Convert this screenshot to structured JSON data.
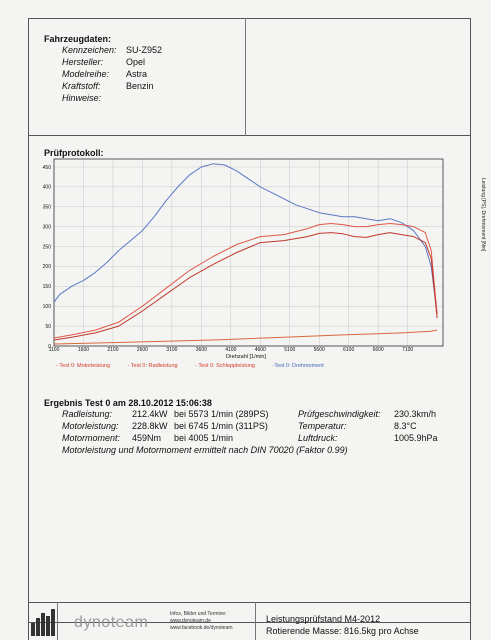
{
  "vehicle": {
    "heading": "Fahrzeugdaten:",
    "rows": [
      {
        "label": "Kennzeichen:",
        "value": "SU-Z952"
      },
      {
        "label": "Hersteller:",
        "value": "Opel"
      },
      {
        "label": "Modelreihe:",
        "value": "Astra"
      },
      {
        "label": "Kraftstoff:",
        "value": "Benzin"
      },
      {
        "label": "Hinweise:",
        "value": ""
      }
    ]
  },
  "protocol": {
    "heading": "Prüfprotokoll:",
    "right_axis_label": "Leistung [PS], Drehmoment [Nm]",
    "legend": [
      {
        "label": "- Test 0: Motorleistung",
        "color": "#d33a2c"
      },
      {
        "label": "- Test 0: Radleistung",
        "color": "#d33a2c"
      },
      {
        "label": "- Test 0: Schleppleistung",
        "color": "#d33a2c"
      },
      {
        "label": "-Test 0: Drehmoment",
        "color": "#4466bb"
      }
    ]
  },
  "chart_data": {
    "type": "line",
    "xlabel": "Drehzahl [1/min]",
    "ylabel": "Leistung [PS], Drehmoment [Nm]",
    "xlim": [
      1100,
      7700
    ],
    "ylim": [
      0,
      470
    ],
    "xticks": [
      1100,
      1600,
      2100,
      2600,
      3100,
      3600,
      4100,
      4600,
      5100,
      5600,
      6100,
      6600,
      7100
    ],
    "yticks": [
      0,
      50,
      100,
      150,
      200,
      250,
      300,
      350,
      400,
      450
    ],
    "grid": true,
    "series": [
      {
        "name": "Test 0: Drehmoment",
        "color": "#5b78c4",
        "x": [
          1100,
          1200,
          1400,
          1600,
          1800,
          2000,
          2200,
          2400,
          2600,
          2800,
          3000,
          3200,
          3400,
          3600,
          3800,
          4000,
          4200,
          4400,
          4600,
          4800,
          5000,
          5200,
          5400,
          5600,
          5800,
          6000,
          6200,
          6400,
          6600,
          6800,
          7000,
          7200,
          7400,
          7500,
          7600
        ],
        "y": [
          110,
          130,
          150,
          165,
          185,
          210,
          240,
          265,
          290,
          325,
          365,
          400,
          430,
          450,
          458,
          455,
          440,
          420,
          400,
          385,
          370,
          355,
          345,
          335,
          330,
          325,
          325,
          320,
          315,
          320,
          310,
          290,
          250,
          200,
          80
        ]
      },
      {
        "name": "Test 0: Motorleistung",
        "color": "#e0584a",
        "x": [
          1100,
          1400,
          1800,
          2200,
          2600,
          3000,
          3400,
          3800,
          4200,
          4600,
          5000,
          5400,
          5600,
          5800,
          6000,
          6200,
          6400,
          6600,
          6800,
          7000,
          7200,
          7400,
          7500,
          7600
        ],
        "y": [
          20,
          28,
          40,
          60,
          100,
          145,
          190,
          225,
          255,
          275,
          280,
          295,
          305,
          308,
          305,
          300,
          300,
          305,
          308,
          305,
          300,
          285,
          240,
          80
        ]
      },
      {
        "name": "Test 0: Radleistung",
        "color": "#c0392b",
        "x": [
          1100,
          1400,
          1800,
          2200,
          2600,
          3000,
          3400,
          3800,
          4200,
          4600,
          5000,
          5400,
          5600,
          5800,
          6000,
          6200,
          6400,
          6600,
          6800,
          7000,
          7200,
          7400,
          7500,
          7600
        ],
        "y": [
          15,
          22,
          33,
          50,
          88,
          130,
          172,
          205,
          235,
          260,
          265,
          275,
          283,
          285,
          282,
          275,
          273,
          280,
          285,
          280,
          275,
          260,
          220,
          70
        ]
      },
      {
        "name": "Test 0: Schleppleistung",
        "color": "#d9693a",
        "x": [
          1100,
          2000,
          3000,
          4000,
          5000,
          6000,
          7000,
          7500,
          7600
        ],
        "y": [
          5,
          8,
          12,
          16,
          22,
          28,
          33,
          37,
          40
        ]
      }
    ]
  },
  "result": {
    "heading": "Ergebnis Test 0 am 28.10.2012 15:06:38",
    "rows": [
      {
        "label": "Radleistung:",
        "value": "212.4kW",
        "at": "bei 5573 1/min (289PS)"
      },
      {
        "label": "Motorleistung:",
        "value": "228.8kW",
        "at": "bei 6745 1/min (311PS)"
      },
      {
        "label": "Motormoment:",
        "value": "459Nm",
        "at": "bei 4005 1/min"
      }
    ],
    "conditions": [
      {
        "label": "Prüfgeschwindigkeit:",
        "value": "230.3km/h"
      },
      {
        "label": "Temperatur:",
        "value": "8.3°C"
      },
      {
        "label": "Luftdruck:",
        "value": "1005.9hPa"
      }
    ],
    "note": "Motorleistung und Motormoment ermittelt nach DIN 70020 (Faktor 0.99)"
  },
  "footer": {
    "brand": "dynoteam",
    "info_lines": [
      "Infos, Bilder und Termine:",
      "www.dynoteam.de",
      "www.facebook.de/dynoteam"
    ],
    "title": "Leistungsprüfstand M4-2012",
    "mass": "Rotierende Masse: 816.5kg pro Achse"
  }
}
